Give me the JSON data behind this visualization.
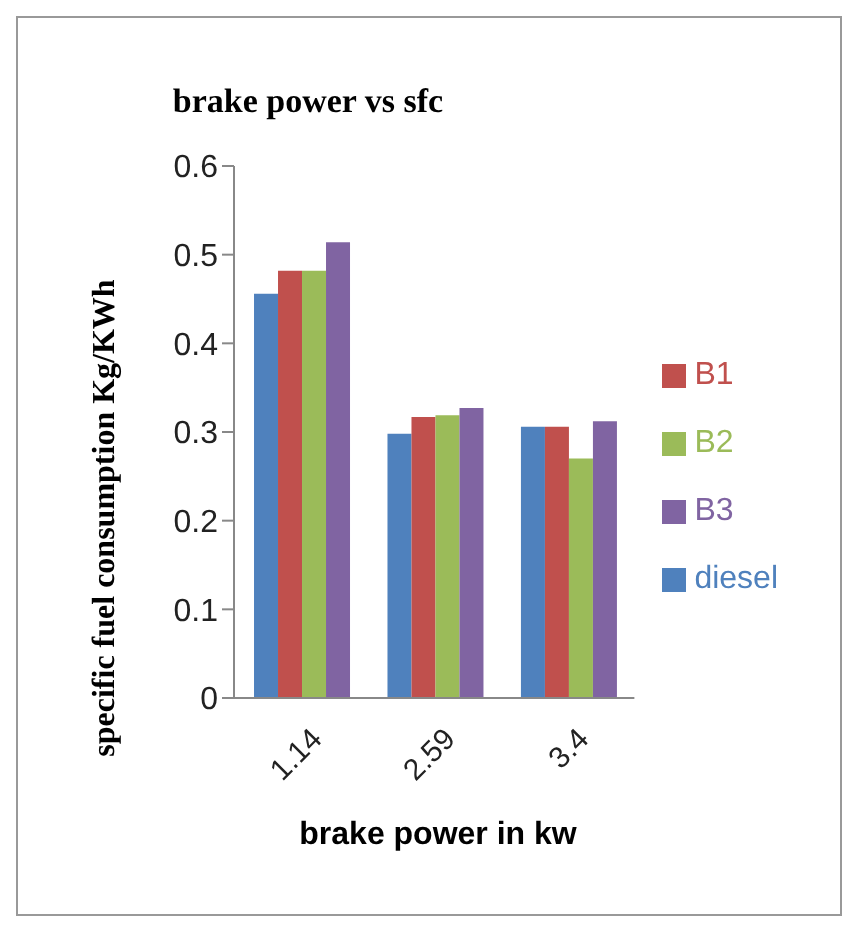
{
  "chart_data": {
    "type": "bar",
    "title": "brake power vs sfc",
    "xlabel": "brake power in kw",
    "ylabel": "specific fuel consumption  Kg/KWh",
    "categories": [
      "1.14",
      "2.59",
      "3.4"
    ],
    "series": [
      {
        "name": "diesel",
        "color": "#4f81bd",
        "values": [
          0.456,
          0.298,
          0.306
        ]
      },
      {
        "name": "B1",
        "color": "#c0504d",
        "values": [
          0.482,
          0.317,
          0.306
        ]
      },
      {
        "name": "B2",
        "color": "#9bbb59",
        "values": [
          0.482,
          0.319,
          0.27
        ]
      },
      {
        "name": "B3",
        "color": "#8064a2",
        "values": [
          0.514,
          0.327,
          0.312
        ]
      }
    ],
    "ylim": [
      0,
      0.6
    ],
    "yticks": [
      0,
      0.1,
      0.2,
      0.3,
      0.4,
      0.5,
      0.6
    ],
    "grid": false,
    "legend": "right"
  }
}
